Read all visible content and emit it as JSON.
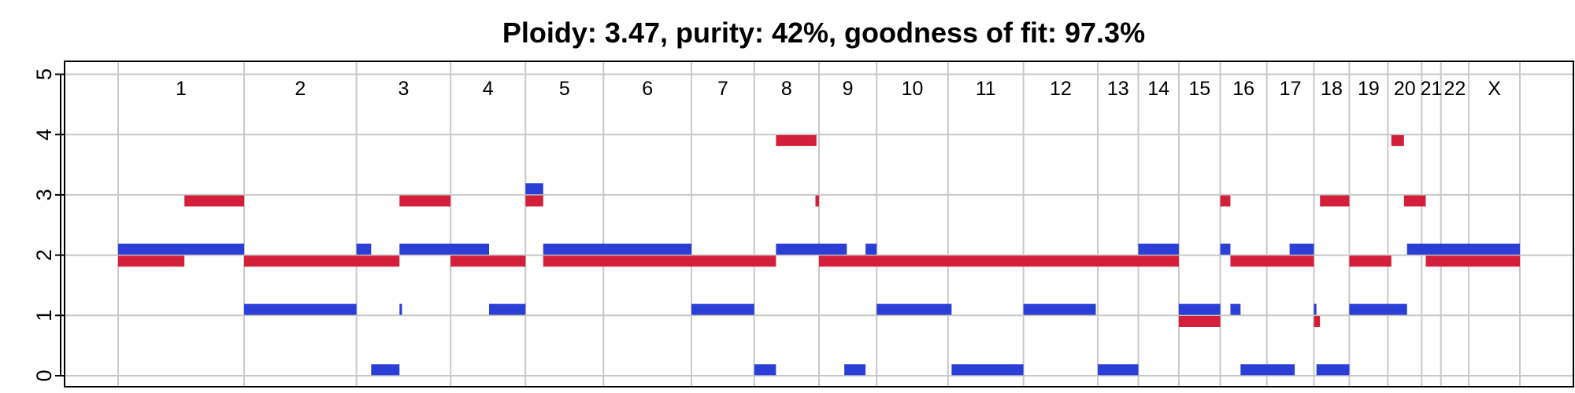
{
  "chart_data": {
    "type": "bar",
    "title": "Ploidy: 3.47, purity: 42%, goodness of fit: 97.3%",
    "xlabel": "",
    "ylabel": "",
    "ylim": [
      0,
      5
    ],
    "y_ticks": [
      "0",
      "1",
      "2",
      "3",
      "4",
      "5"
    ],
    "grid": true,
    "x_axis_unit": "Mb (cumulative genome position)",
    "xlim": [
      0,
      3100
    ],
    "colors": {
      "major": "#2b3fd6",
      "minor": "#d41f3a",
      "grid": "#c8c8c8"
    },
    "chromosomes": [
      {
        "name": "1",
        "start": 0,
        "end": 249
      },
      {
        "name": "2",
        "start": 249,
        "end": 471
      },
      {
        "name": "3",
        "start": 471,
        "end": 657
      },
      {
        "name": "4",
        "start": 657,
        "end": 805
      },
      {
        "name": "5",
        "start": 805,
        "end": 959
      },
      {
        "name": "6",
        "start": 959,
        "end": 1133
      },
      {
        "name": "7",
        "start": 1133,
        "end": 1257
      },
      {
        "name": "8",
        "start": 1257,
        "end": 1385
      },
      {
        "name": "9",
        "start": 1385,
        "end": 1499
      },
      {
        "name": "10",
        "start": 1499,
        "end": 1640
      },
      {
        "name": "11",
        "start": 1640,
        "end": 1789
      },
      {
        "name": "12",
        "start": 1789,
        "end": 1936
      },
      {
        "name": "13",
        "start": 1936,
        "end": 2016
      },
      {
        "name": "14",
        "start": 2016,
        "end": 2096
      },
      {
        "name": "15",
        "start": 2096,
        "end": 2178
      },
      {
        "name": "16",
        "start": 2178,
        "end": 2270
      },
      {
        "name": "17",
        "start": 2270,
        "end": 2363
      },
      {
        "name": "18",
        "start": 2363,
        "end": 2433
      },
      {
        "name": "19",
        "start": 2433,
        "end": 2509
      },
      {
        "name": "20",
        "start": 2509,
        "end": 2576
      },
      {
        "name": "21",
        "start": 2576,
        "end": 2614
      },
      {
        "name": "22",
        "start": 2614,
        "end": 2669
      },
      {
        "name": "X",
        "start": 2669,
        "end": 2770
      }
    ],
    "series": [
      {
        "key": "major",
        "segments": [
          {
            "x0": 0,
            "x1": 249,
            "y": 2.1
          },
          {
            "x0": 249,
            "x1": 471,
            "y": 1.1
          },
          {
            "x0": 471,
            "x1": 500,
            "y": 2.1
          },
          {
            "x0": 500,
            "x1": 556,
            "y": 0.1
          },
          {
            "x0": 556,
            "x1": 561,
            "y": 1.1
          },
          {
            "x0": 556,
            "x1": 733,
            "y": 2.1
          },
          {
            "x0": 733,
            "x1": 805,
            "y": 1.1
          },
          {
            "x0": 805,
            "x1": 840,
            "y": 3.1
          },
          {
            "x0": 840,
            "x1": 1133,
            "y": 2.1
          },
          {
            "x0": 1133,
            "x1": 1257,
            "y": 1.1
          },
          {
            "x0": 1257,
            "x1": 1300,
            "y": 0.1
          },
          {
            "x0": 1300,
            "x1": 1440,
            "y": 2.1
          },
          {
            "x0": 1435,
            "x1": 1477,
            "y": 0.1
          },
          {
            "x0": 1477,
            "x1": 1499,
            "y": 2.1
          },
          {
            "x0": 1499,
            "x1": 1647,
            "y": 1.1
          },
          {
            "x0": 1647,
            "x1": 1789,
            "y": 0.1
          },
          {
            "x0": 1789,
            "x1": 1932,
            "y": 1.1
          },
          {
            "x0": 1936,
            "x1": 2016,
            "y": 0.1
          },
          {
            "x0": 2016,
            "x1": 2096,
            "y": 2.1
          },
          {
            "x0": 2096,
            "x1": 2178,
            "y": 1.1
          },
          {
            "x0": 2178,
            "x1": 2198,
            "y": 2.1
          },
          {
            "x0": 2198,
            "x1": 2218,
            "y": 1.1
          },
          {
            "x0": 2218,
            "x1": 2325,
            "y": 0.1
          },
          {
            "x0": 2315,
            "x1": 2363,
            "y": 2.1
          },
          {
            "x0": 2363,
            "x1": 2368,
            "y": 1.1
          },
          {
            "x0": 2368,
            "x1": 2433,
            "y": 0.1
          },
          {
            "x0": 2433,
            "x1": 2547,
            "y": 1.1
          },
          {
            "x0": 2547,
            "x1": 2770,
            "y": 2.1
          }
        ]
      },
      {
        "key": "minor",
        "segments": [
          {
            "x0": 0,
            "x1": 131,
            "y": 1.9
          },
          {
            "x0": 131,
            "x1": 249,
            "y": 2.9
          },
          {
            "x0": 249,
            "x1": 556,
            "y": 1.9
          },
          {
            "x0": 556,
            "x1": 657,
            "y": 2.9
          },
          {
            "x0": 657,
            "x1": 805,
            "y": 1.9
          },
          {
            "x0": 805,
            "x1": 840,
            "y": 2.9
          },
          {
            "x0": 840,
            "x1": 1300,
            "y": 1.9
          },
          {
            "x0": 1300,
            "x1": 1380,
            "y": 3.9
          },
          {
            "x0": 1378,
            "x1": 1385,
            "y": 2.9
          },
          {
            "x0": 1385,
            "x1": 2096,
            "y": 1.9
          },
          {
            "x0": 2096,
            "x1": 2178,
            "y": 0.9
          },
          {
            "x0": 2178,
            "x1": 2198,
            "y": 2.9
          },
          {
            "x0": 2198,
            "x1": 2363,
            "y": 1.9
          },
          {
            "x0": 2363,
            "x1": 2375,
            "y": 0.9
          },
          {
            "x0": 2375,
            "x1": 2433,
            "y": 2.9
          },
          {
            "x0": 2433,
            "x1": 2516,
            "y": 1.9
          },
          {
            "x0": 2516,
            "x1": 2541,
            "y": 3.9
          },
          {
            "x0": 2541,
            "x1": 2584,
            "y": 2.9
          },
          {
            "x0": 2584,
            "x1": 2770,
            "y": 1.9
          }
        ]
      }
    ]
  }
}
